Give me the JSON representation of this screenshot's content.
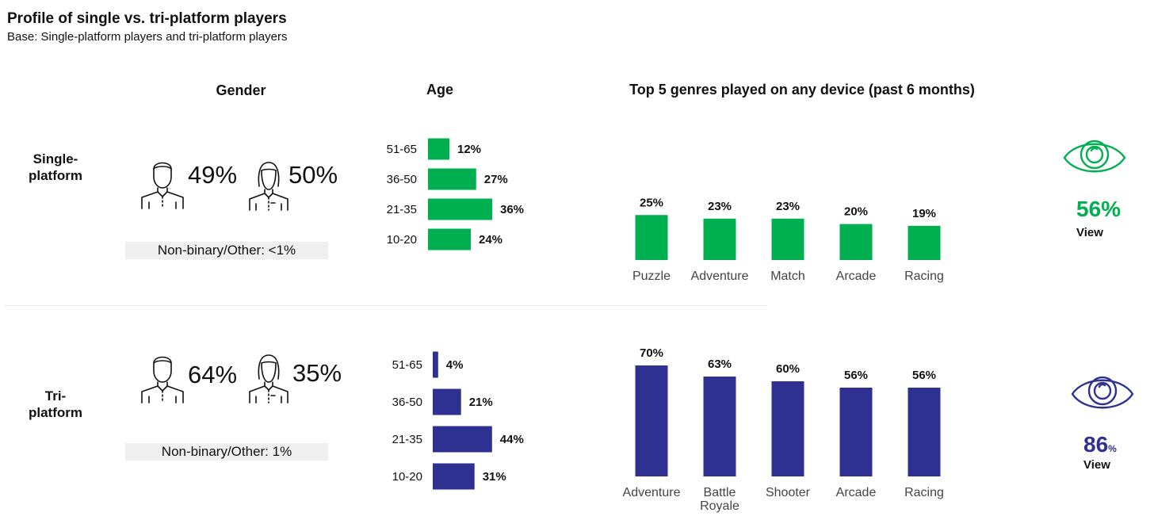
{
  "title": "Profile of single vs. tri-platform players",
  "subtitle": "Base: Single-platform players and tri-platform players",
  "columns": {
    "gender": "Gender",
    "age": "Age",
    "genres": "Top 5 genres played on any device (past 6 months)"
  },
  "colors": {
    "single": "#00b050",
    "tri": "#2e3192"
  },
  "groups": [
    {
      "label_line1": "Single-",
      "label_line2": "platform",
      "male_pct": "49%",
      "female_pct": "50%",
      "nonbinary": "Non-binary/Other: <1%",
      "view_pct": "56%",
      "view_pct_suffix": "",
      "view_label": "View"
    },
    {
      "label_line1": "Tri-",
      "label_line2": "platform",
      "male_pct": "64%",
      "female_pct": "35%",
      "nonbinary": "Non-binary/Other: 1%",
      "view_pct": "86",
      "view_pct_suffix": "%",
      "view_label": "View"
    }
  ],
  "icons": [
    "male-person-icon",
    "female-person-icon",
    "eye-icon"
  ],
  "chart_data": [
    {
      "type": "bar",
      "orientation": "horizontal",
      "group": "Single-platform",
      "categories": [
        "51-65",
        "36-50",
        "21-35",
        "10-20"
      ],
      "values": [
        12,
        27,
        36,
        24
      ],
      "labels": [
        "12%",
        "27%",
        "36%",
        "24%"
      ]
    },
    {
      "type": "bar",
      "orientation": "horizontal",
      "group": "Tri-platform",
      "categories": [
        "51-65",
        "36-50",
        "21-35",
        "10-20"
      ],
      "values": [
        4,
        21,
        44,
        31
      ],
      "labels": [
        "4%",
        "21%",
        "44%",
        "31%"
      ]
    },
    {
      "type": "bar",
      "orientation": "vertical",
      "group": "Single-platform",
      "categories": [
        "Puzzle",
        "Adventure",
        "Match",
        "Arcade",
        "Racing"
      ],
      "values": [
        25,
        23,
        23,
        20,
        19
      ],
      "labels": [
        "25%",
        "23%",
        "23%",
        "20%",
        "19%"
      ]
    },
    {
      "type": "bar",
      "orientation": "vertical",
      "group": "Tri-platform",
      "categories": [
        "Adventure",
        "Battle Royale",
        "Shooter",
        "Arcade",
        "Racing"
      ],
      "values": [
        70,
        63,
        60,
        56,
        56
      ],
      "labels": [
        "70%",
        "63%",
        "60%",
        "56%",
        "56%"
      ]
    }
  ]
}
